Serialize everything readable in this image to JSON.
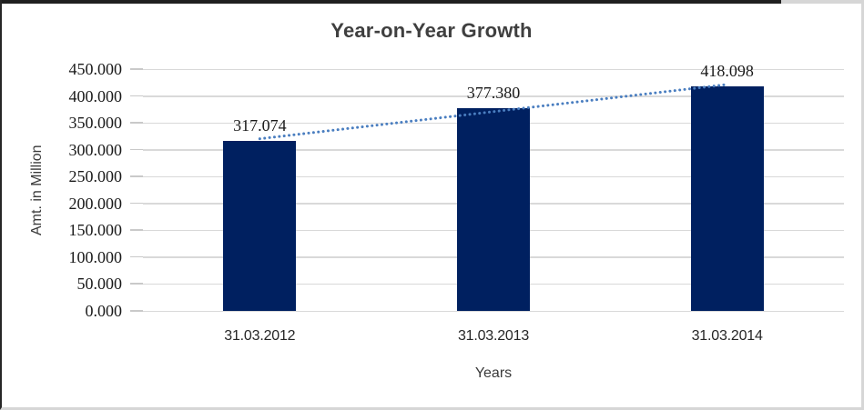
{
  "chart_data": {
    "type": "bar",
    "title": "Year-on-Year Growth",
    "xlabel": "Years",
    "ylabel": "Amt. in Million",
    "categories": [
      "31.03.2012",
      "31.03.2013",
      "31.03.2014"
    ],
    "values": [
      317.074,
      377.38,
      418.098
    ],
    "data_labels": [
      "317.074",
      "377.380",
      "418.098"
    ],
    "ylim": [
      0,
      450
    ],
    "ytick_step": 50,
    "ytick_labels": [
      "0.000",
      "50.000",
      "100.000",
      "150.000",
      "200.000",
      "250.000",
      "300.000",
      "350.000",
      "400.000",
      "450.000"
    ],
    "grid": true,
    "legend": "none",
    "bar_color": "#002060",
    "gridline_color": "#d9d9d9",
    "tick_color": "#c9c9c9",
    "title_color": "#3f3f3f",
    "trendline": {
      "type": "linear",
      "style": "dotted",
      "color": "#4a7ec0"
    }
  }
}
